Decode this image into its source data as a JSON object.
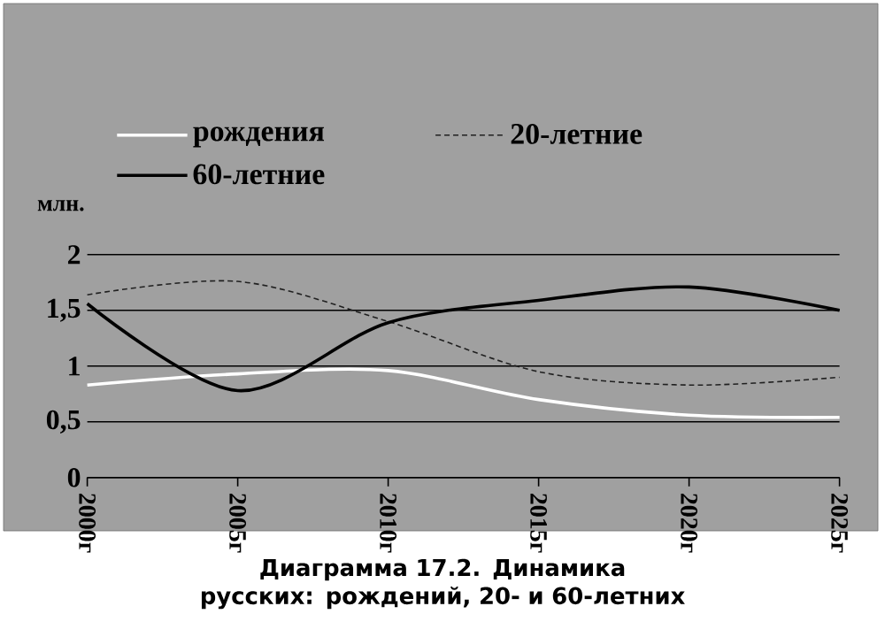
{
  "chart_data": {
    "type": "line",
    "title": "Диаграмма 17.2. Динамика  русских: рождений, 20- и 60-летних",
    "ylabel": "млн.",
    "categories": [
      "2000г",
      "2005г",
      "2010г",
      "2015г",
      "2020г",
      "2025г"
    ],
    "series": [
      {
        "name": "рождения",
        "color": "#ffffff",
        "line_style": "solid",
        "values": [
          0.83,
          0.93,
          0.96,
          0.7,
          0.56,
          0.54
        ]
      },
      {
        "name": "20-летние",
        "color": "#202020",
        "line_style": "dashed",
        "values": [
          1.64,
          1.76,
          1.4,
          0.95,
          0.83,
          0.9
        ]
      },
      {
        "name": "60-летние",
        "color": "#000000",
        "line_style": "solid",
        "values": [
          1.56,
          0.78,
          1.39,
          1.59,
          1.71,
          1.5
        ]
      }
    ],
    "ylim": [
      0,
      2
    ],
    "yticks": [
      0,
      {
        "value": 0.5,
        "label": "0,5"
      },
      1,
      {
        "value": 1.5,
        "label": "1,5"
      },
      2
    ],
    "grid": "y",
    "legend": "top"
  }
}
